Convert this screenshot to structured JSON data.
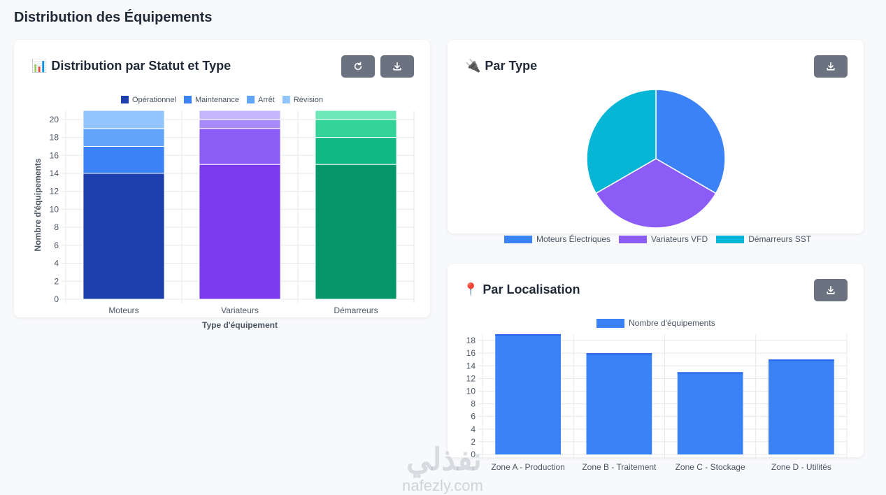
{
  "page": {
    "title": "Distribution des Équipements"
  },
  "status_card": {
    "title": "Distribution par Statut et Type",
    "title_emoji": "📊",
    "refresh_label": "refresh",
    "download_label": "download"
  },
  "type_card": {
    "title": "Par Type",
    "title_emoji": "🔌",
    "download_label": "download"
  },
  "location_card": {
    "title": "Par Localisation",
    "title_emoji": "📍",
    "download_label": "download"
  },
  "watermark": {
    "arabic": "نفذلي",
    "latin": "nafezly.com"
  },
  "chart_data": [
    {
      "type": "bar",
      "stacked": true,
      "title": "Distribution par Statut et Type",
      "categories": [
        "Moteurs",
        "Variateurs",
        "Démarreurs"
      ],
      "series": [
        {
          "name": "Opérationnel",
          "values": [
            14,
            15,
            15
          ]
        },
        {
          "name": "Maintenance",
          "values": [
            3,
            4,
            3
          ]
        },
        {
          "name": "Arrêt",
          "values": [
            2,
            1,
            2
          ]
        },
        {
          "name": "Révision",
          "values": [
            2,
            1,
            1
          ]
        }
      ],
      "series_colors": [
        [
          "#1e40af",
          "#3b82f6",
          "#60a5fa",
          "#93c5fd"
        ],
        [
          "#7c3aed",
          "#8b5cf6",
          "#a78bfa",
          "#c4b5fd"
        ],
        [
          "#059669",
          "#10b981",
          "#34d399",
          "#6ee7b7"
        ]
      ],
      "legend_colors": [
        "#1e40af",
        "#3b82f6",
        "#60a5fa",
        "#93c5fd"
      ],
      "xlabel": "Type d'équipement",
      "ylabel": "Nombre d'équipements",
      "ylim": [
        0,
        21
      ],
      "yticks": [
        0,
        2,
        4,
        6,
        8,
        10,
        12,
        14,
        16,
        18,
        20
      ],
      "grid": true,
      "legend": "top"
    },
    {
      "type": "pie",
      "title": "Par Type",
      "labels": [
        "Moteurs Électriques",
        "Variateurs VFD",
        "Démarreurs SST"
      ],
      "values": [
        1,
        1,
        1
      ],
      "colors": [
        "#3b82f6",
        "#8b5cf6",
        "#06b6d4"
      ],
      "legend": "bottom"
    },
    {
      "type": "bar",
      "title": "Par Localisation",
      "categories": [
        "Zone A - Production",
        "Zone B - Traitement",
        "Zone C - Stockage",
        "Zone D - Utilités"
      ],
      "series": [
        {
          "name": "Nombre d'équipements",
          "values": [
            19,
            16,
            13,
            15
          ]
        }
      ],
      "color": "#3b82f6",
      "ylim": [
        0,
        19
      ],
      "yticks": [
        0,
        2,
        4,
        6,
        8,
        10,
        12,
        14,
        16,
        18
      ],
      "grid": true,
      "legend": "top"
    }
  ]
}
